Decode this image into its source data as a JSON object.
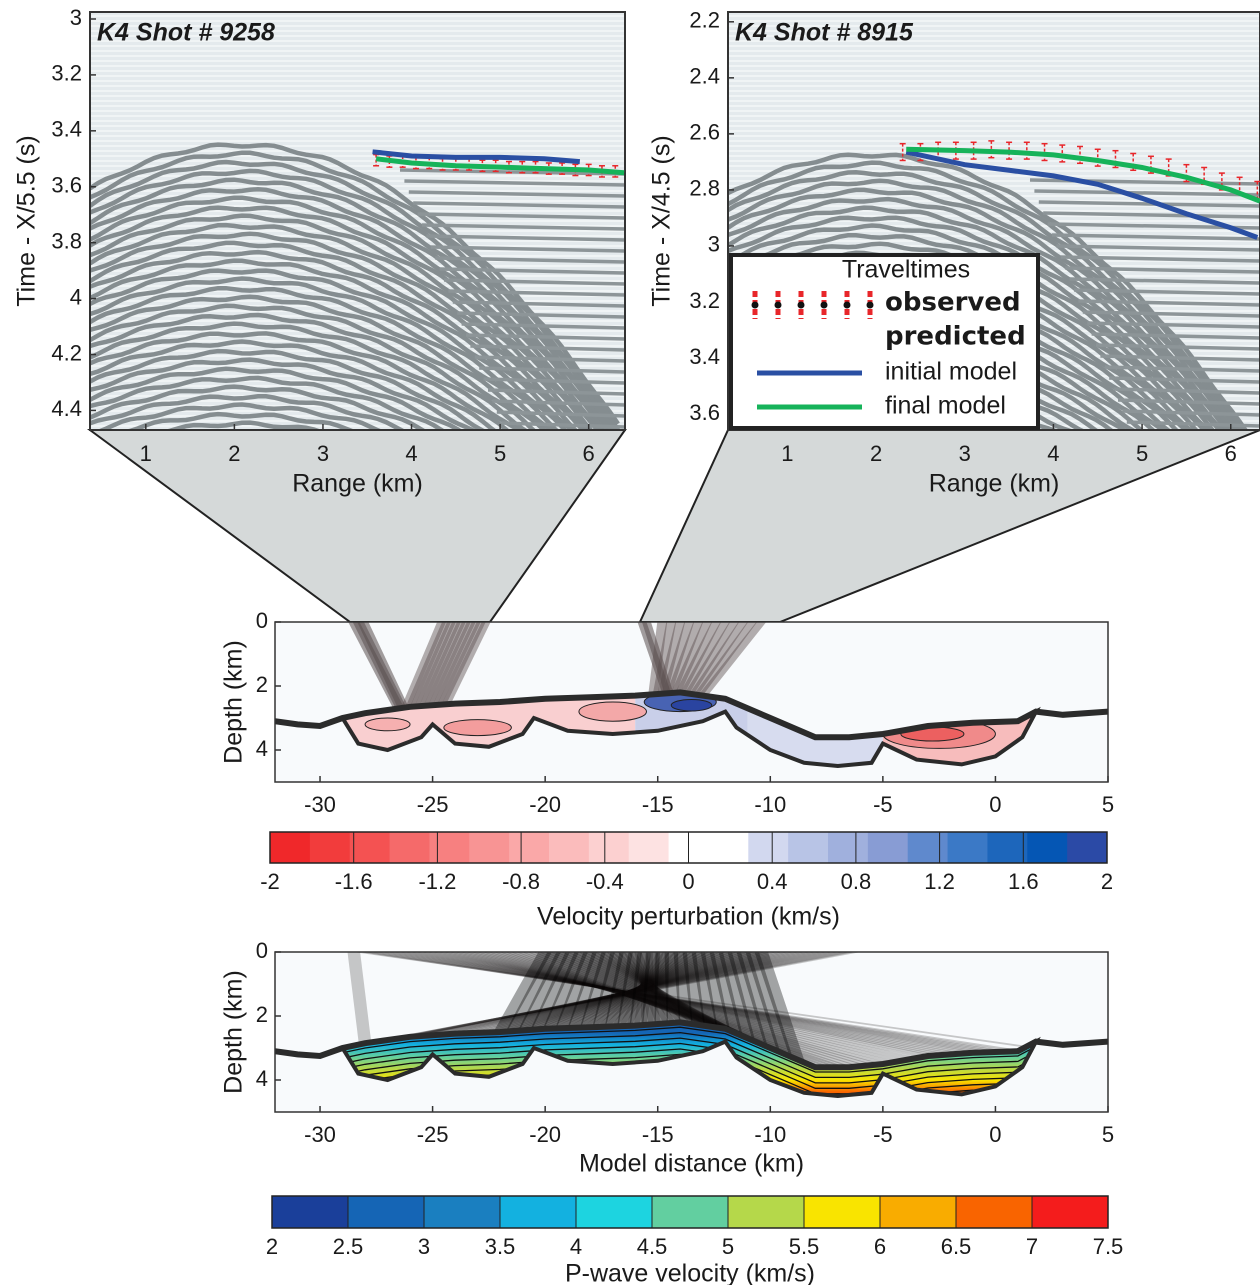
{
  "chart_data": [
    {
      "type": "line",
      "title": "K4 Shot # 9258",
      "xlabel": "Range (km)",
      "ylabel": "Time - X/5.5 (s)",
      "xlim": [
        0.37,
        6.41
      ],
      "ylim": [
        2.975,
        4.47
      ],
      "y_inverted": true,
      "xticks": [
        1,
        2,
        3,
        4,
        5,
        6
      ],
      "yticks": [
        3,
        3.2,
        3.4,
        3.6,
        3.8,
        4,
        4.2,
        4.4
      ],
      "series": [
        {
          "kind": "errorbar",
          "color": "#e8262a",
          "x": [
            3.6,
            3.75,
            3.9,
            4.05,
            4.2,
            4.35,
            4.5,
            4.65,
            4.8,
            4.95,
            5.1,
            5.25,
            5.4,
            5.55,
            5.7,
            5.85,
            6.0,
            6.15,
            6.3
          ],
          "values": [
            3.505,
            3.51,
            3.51,
            3.515,
            3.515,
            3.52,
            3.52,
            3.52,
            3.525,
            3.525,
            3.53,
            3.53,
            3.53,
            3.535,
            3.535,
            3.54,
            3.54,
            3.545,
            3.545
          ],
          "errors": [
            0.02,
            0.02,
            0.02,
            0.02,
            0.02,
            0.02,
            0.02,
            0.02,
            0.02,
            0.02,
            0.02,
            0.02,
            0.02,
            0.02,
            0.02,
            0.02,
            0.02,
            0.02,
            0.02
          ]
        },
        {
          "kind": "line",
          "color": "#2a4fa3",
          "x": [
            3.56,
            4,
            4.5,
            5,
            5.5,
            5.9
          ],
          "values": [
            3.475,
            3.49,
            3.495,
            3.495,
            3.5,
            3.51
          ]
        },
        {
          "kind": "line",
          "color": "#16b35a",
          "x": [
            3.6,
            4,
            4.5,
            5,
            5.5,
            6,
            6.4
          ],
          "values": [
            3.5,
            3.515,
            3.525,
            3.53,
            3.535,
            3.54,
            3.55
          ]
        }
      ]
    },
    {
      "type": "line",
      "title": "K4 Shot # 8915",
      "xlabel": "Range (km)",
      "ylabel": "Time - X/4.5 (s)",
      "xlim": [
        0.33,
        6.33
      ],
      "ylim": [
        2.165,
        3.657
      ],
      "y_inverted": true,
      "xticks": [
        1,
        2,
        3,
        4,
        5,
        6
      ],
      "yticks": [
        2.2,
        2.4,
        2.6,
        2.8,
        3,
        3.2,
        3.4,
        3.6
      ],
      "legend": {
        "title": "Traveltimes",
        "group_label": "predicted",
        "corner": "lower left"
      },
      "series": [
        {
          "kind": "errorbar",
          "name": "observed",
          "color": "#e8262a",
          "x": [
            2.3,
            2.5,
            2.7,
            2.9,
            3.1,
            3.3,
            3.5,
            3.7,
            3.9,
            4.1,
            4.3,
            4.5,
            4.7,
            4.9,
            5.1,
            5.3,
            5.5,
            5.7,
            5.9,
            6.1,
            6.3
          ],
          "values": [
            2.665,
            2.665,
            2.66,
            2.66,
            2.66,
            2.655,
            2.66,
            2.66,
            2.665,
            2.67,
            2.675,
            2.685,
            2.69,
            2.7,
            2.71,
            2.72,
            2.74,
            2.75,
            2.77,
            2.785,
            2.8
          ],
          "errors": [
            0.03,
            0.03,
            0.03,
            0.03,
            0.03,
            0.03,
            0.03,
            0.03,
            0.03,
            0.03,
            0.03,
            0.03,
            0.03,
            0.03,
            0.03,
            0.03,
            0.03,
            0.03,
            0.03,
            0.03,
            0.03
          ]
        },
        {
          "kind": "line",
          "name": "initial model",
          "color": "#2a4fa3",
          "x": [
            2.34,
            3,
            3.5,
            4,
            4.5,
            5,
            5.5,
            6,
            6.3
          ],
          "values": [
            2.665,
            2.71,
            2.73,
            2.75,
            2.78,
            2.83,
            2.885,
            2.935,
            2.97
          ]
        },
        {
          "kind": "line",
          "name": "final model",
          "color": "#16b35a",
          "x": [
            2.34,
            3,
            3.5,
            4,
            4.5,
            5,
            5.5,
            6,
            6.33
          ],
          "values": [
            2.655,
            2.66,
            2.665,
            2.675,
            2.695,
            2.72,
            2.755,
            2.8,
            2.84
          ]
        }
      ]
    },
    {
      "type": "section",
      "style": "perturbation",
      "ylabel": "Depth (km)",
      "xlim": [
        -32,
        5
      ],
      "ylim": [
        0,
        5
      ],
      "y_inverted": true,
      "xticks": [
        -30,
        -25,
        -20,
        -15,
        -10,
        -5,
        0,
        5
      ],
      "yticks": [
        0,
        2,
        4
      ]
    },
    {
      "type": "section",
      "style": "velocity",
      "xlabel": "Model distance (km)",
      "ylabel": "Depth (km)",
      "xlim": [
        -32,
        5
      ],
      "ylim": [
        0,
        5
      ],
      "y_inverted": true,
      "xticks": [
        -30,
        -25,
        -20,
        -15,
        -10,
        -5,
        0,
        5
      ],
      "yticks": [
        0,
        2,
        4
      ]
    },
    {
      "type": "colorbar",
      "label": "Velocity perturbation (km/s)",
      "xlim": [
        -2,
        2
      ],
      "xticks": [
        -2,
        -1.6,
        -1.2,
        -0.8,
        -0.4,
        0,
        0.4,
        0.8,
        1.2,
        1.6,
        2
      ],
      "colors": [
        "#f0282a",
        "#f23c3c",
        "#f45252",
        "#f56a6a",
        "#f78080",
        "#f89494",
        "#faa8a8",
        "#fbbcbc",
        "#fcd0d0",
        "#fde2e2",
        "#ffffff",
        "#ffffff",
        "#d2d8ef",
        "#b8c4e6",
        "#a0b0dd",
        "#889cd4",
        "#5f89cd",
        "#3b79c6",
        "#1d66bb",
        "#0556b4",
        "#2b4aa6"
      ]
    },
    {
      "type": "colorbar",
      "label": "P-wave velocity (km/s)",
      "xlim": [
        2,
        7.5
      ],
      "xticks": [
        2,
        2.5,
        3,
        3.5,
        4,
        4.5,
        5,
        5.5,
        6,
        6.5,
        7,
        7.5
      ],
      "colors": [
        "#1a3f9a",
        "#1565b5",
        "#1a7fc0",
        "#13b1e0",
        "#1dd4e0",
        "#62cfa0",
        "#b5d84a",
        "#f9e400",
        "#f9ac00",
        "#f96400",
        "#f41c1c"
      ]
    }
  ]
}
